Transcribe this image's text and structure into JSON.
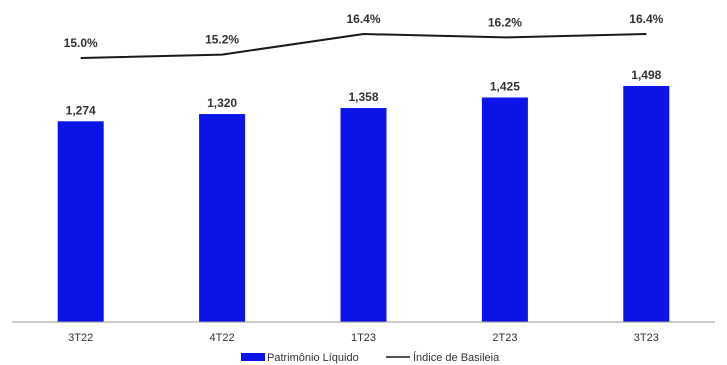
{
  "chart_data": {
    "type": "bar",
    "categories": [
      "3T22",
      "4T22",
      "1T23",
      "2T23",
      "3T23"
    ],
    "series": [
      {
        "name": "Patrimônio Líquido",
        "type": "bar",
        "values": [
          1274,
          1320,
          1358,
          1425,
          1498
        ],
        "labels": [
          "1,274",
          "1,320",
          "1,358",
          "1,425",
          "1,498"
        ],
        "color": "#0a14e6"
      },
      {
        "name": "Índice de Basileia",
        "type": "line",
        "values": [
          15.0,
          15.2,
          16.4,
          16.2,
          16.4
        ],
        "labels": [
          "15.0%",
          "15.2%",
          "16.4%",
          "16.2%",
          "16.4%"
        ],
        "color": "#1a1a1a"
      }
    ],
    "legend_position": "bottom-center",
    "grid": false
  }
}
